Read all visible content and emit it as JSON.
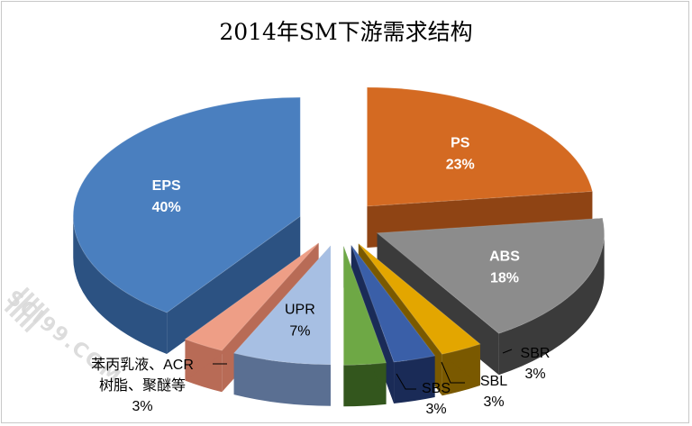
{
  "chart_data": {
    "type": "pie",
    "title": "2014年SM下游需求结构",
    "slices": [
      {
        "label": "PS",
        "value": 23,
        "pct_text": "23%",
        "color": "#d46a22",
        "side": "#8f4414",
        "explode": 46,
        "label_inside": true
      },
      {
        "label": "ABS",
        "value": 18,
        "pct_text": "18%",
        "color": "#8c8c8c",
        "side": "#3b3b3b",
        "explode": 46,
        "label_inside": true
      },
      {
        "label": "SBR",
        "value": 3,
        "pct_text": "3%",
        "color": "#e3a600",
        "side": "#7a5900",
        "explode": 46,
        "label_inside": false
      },
      {
        "label": "SBL",
        "value": 3,
        "pct_text": "3%",
        "color": "#3a5fa8",
        "side": "#1a2b57",
        "explode": 46,
        "label_inside": false
      },
      {
        "label": "SBS",
        "value": 3,
        "pct_text": "3%",
        "color": "#6ea845",
        "side": "#33561d",
        "explode": 46,
        "label_inside": false
      },
      {
        "label": "UPR",
        "value": 7,
        "pct_text": "7%",
        "color": "#a7bfe3",
        "side": "#5a6f92",
        "explode": 46,
        "label_inside": true
      },
      {
        "label": "苯丙乳液、ACR树脂、聚醚等",
        "value": 3,
        "pct_text": "3%",
        "color": "#ee9e86",
        "side": "#b86b56",
        "explode": 46,
        "label_inside": false
      },
      {
        "label": "EPS",
        "value": 40,
        "pct_text": "40%",
        "color": "#4a7fbf",
        "side": "#2c5282",
        "explode": 46,
        "label_inside": true
      }
    ],
    "start_angle_deg": 0,
    "direction": "clockwise",
    "depth_3d": true,
    "legend": "none",
    "outside_labels": {
      "SBR": {
        "line1": "SBR",
        "line2": "3%"
      },
      "SBL": {
        "line1": "SBL",
        "line2": "3%"
      },
      "SBS": {
        "line1": "SBS",
        "line2": "3%"
      },
      "其他": {
        "line1": "苯丙乳液、ACR",
        "line2": "树脂、聚醚等",
        "line3": "3%"
      }
    }
  },
  "watermark": "SCI99.COM"
}
